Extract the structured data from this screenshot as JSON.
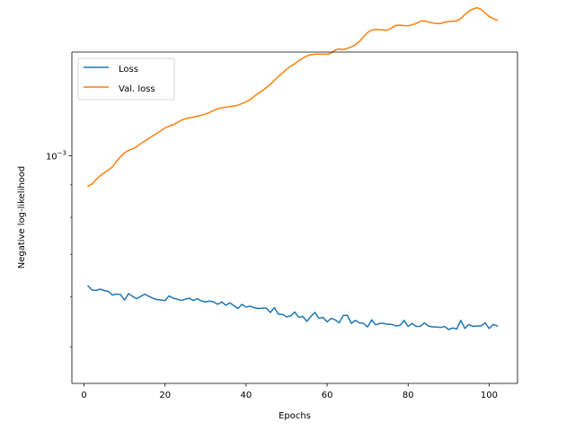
{
  "chart_data": {
    "type": "line",
    "xlabel": "Epochs",
    "ylabel": "Negative log-likelihood",
    "yscale": "log",
    "grid": false,
    "legend_position": "top-left",
    "xlim": [
      -3,
      107
    ],
    "ylim_log10": [
      -3.358,
      -2.837
    ],
    "x_ticks": [
      0,
      20,
      40,
      60,
      80,
      100
    ],
    "x_tick_labels": [
      "0",
      "20",
      "40",
      "60",
      "80",
      "100"
    ],
    "y_ticks": [
      0.001
    ],
    "y_tick_labels": [
      "10",
      "−3"
    ],
    "series": [
      {
        "name": "Loss",
        "color": "#1f77b4",
        "x": [
          1,
          2,
          3,
          4,
          5,
          6,
          7,
          8,
          9,
          10,
          11,
          12,
          13,
          14,
          15,
          16,
          17,
          18,
          19,
          20,
          21,
          22,
          23,
          24,
          25,
          26,
          27,
          28,
          29,
          30,
          31,
          32,
          33,
          34,
          35,
          36,
          37,
          38,
          39,
          40,
          41,
          42,
          43,
          44,
          45,
          46,
          47,
          48,
          49,
          50,
          51,
          52,
          53,
          54,
          55,
          56,
          57,
          58,
          59,
          60,
          61,
          62,
          63,
          64,
          65,
          66,
          67,
          68,
          69,
          70,
          71,
          72,
          73,
          74,
          75,
          76,
          77,
          78,
          79,
          80,
          81,
          82,
          83,
          84,
          85,
          86,
          87,
          88,
          89,
          90,
          91,
          92,
          93,
          94,
          95,
          96,
          97,
          98,
          99,
          100,
          101,
          102
        ],
        "y": [
          0.000624,
          0.000615,
          0.000614,
          0.000617,
          0.000614,
          0.000612,
          0.000604,
          0.000606,
          0.000605,
          0.000593,
          0.000607,
          0.000601,
          0.000596,
          0.000601,
          0.000606,
          0.000601,
          0.000597,
          0.000594,
          0.000593,
          0.000592,
          0.000602,
          0.000597,
          0.000595,
          0.000592,
          0.000595,
          0.000597,
          0.000592,
          0.000596,
          0.000591,
          0.000589,
          0.000591,
          0.000589,
          0.000584,
          0.000589,
          0.000582,
          0.000587,
          0.000581,
          0.000575,
          0.000584,
          0.000578,
          0.00058,
          0.000577,
          0.000575,
          0.000576,
          0.000576,
          0.000567,
          0.000577,
          0.000563,
          0.000563,
          0.000558,
          0.00056,
          0.000568,
          0.000557,
          0.000559,
          0.000549,
          0.000559,
          0.000567,
          0.000555,
          0.000557,
          0.000548,
          0.000555,
          0.000552,
          0.000546,
          0.000561,
          0.000561,
          0.000545,
          0.000551,
          0.000546,
          0.000545,
          0.000538,
          0.000552,
          0.000542,
          0.000545,
          0.000545,
          0.000543,
          0.000543,
          0.00054,
          0.000541,
          0.000551,
          0.000539,
          0.000545,
          0.000539,
          0.000539,
          0.000546,
          0.00054,
          0.000538,
          0.000538,
          0.000537,
          0.000539,
          0.000533,
          0.000536,
          0.000534,
          0.000551,
          0.000535,
          0.000543,
          0.000539,
          0.00054,
          0.00054,
          0.000546,
          0.000535,
          0.000543,
          0.00054
        ]
      },
      {
        "name": "Val. loss",
        "color": "#ff7f0e",
        "x": [
          1,
          2,
          3,
          4,
          5,
          6,
          7,
          8,
          9,
          10,
          11,
          12,
          13,
          14,
          15,
          16,
          17,
          18,
          19,
          20,
          21,
          22,
          23,
          24,
          25,
          26,
          27,
          28,
          29,
          30,
          31,
          32,
          33,
          34,
          35,
          36,
          37,
          38,
          39,
          40,
          41,
          42,
          43,
          44,
          45,
          46,
          47,
          48,
          49,
          50,
          51,
          52,
          53,
          54,
          55,
          56,
          57,
          58,
          59,
          60,
          61,
          62,
          63,
          64,
          65,
          66,
          67,
          68,
          69,
          70,
          71,
          72,
          73,
          74,
          75,
          76,
          77,
          78,
          79,
          80,
          81,
          82,
          83,
          84,
          85,
          86,
          87,
          88,
          89,
          90,
          91,
          92,
          93,
          94,
          95,
          96,
          97,
          98,
          99,
          100,
          101,
          102
        ],
        "y": [
          0.000896,
          0.000903,
          0.000918,
          0.00093,
          0.00094,
          0.00095,
          0.00096,
          0.00098,
          0.000996,
          0.001011,
          0.00102,
          0.001025,
          0.001033,
          0.001045,
          0.001055,
          0.001065,
          0.001075,
          0.001085,
          0.001095,
          0.001106,
          0.001113,
          0.001119,
          0.001127,
          0.001137,
          0.001143,
          0.001147,
          0.00115,
          0.001154,
          0.001158,
          0.001163,
          0.00117,
          0.001178,
          0.001185,
          0.00119,
          0.001192,
          0.001195,
          0.001197,
          0.001201,
          0.001208,
          0.001216,
          0.001225,
          0.00124,
          0.001253,
          0.001265,
          0.00128,
          0.001295,
          0.001314,
          0.001333,
          0.00135,
          0.001368,
          0.001383,
          0.001395,
          0.001411,
          0.001424,
          0.001435,
          0.001442,
          0.001444,
          0.001445,
          0.001444,
          0.001444,
          0.00145,
          0.001466,
          0.001472,
          0.001469,
          0.001475,
          0.001484,
          0.001495,
          0.001513,
          0.001538,
          0.001562,
          0.001577,
          0.00158,
          0.001579,
          0.001576,
          0.001577,
          0.001589,
          0.001603,
          0.001604,
          0.001602,
          0.001601,
          0.001607,
          0.001614,
          0.001627,
          0.00163,
          0.001623,
          0.001618,
          0.001614,
          0.001614,
          0.001621,
          0.001627,
          0.001627,
          0.00163,
          0.001643,
          0.001667,
          0.001688,
          0.001701,
          0.001709,
          0.001699,
          0.001678,
          0.001655,
          0.001643,
          0.001634
        ]
      }
    ]
  }
}
